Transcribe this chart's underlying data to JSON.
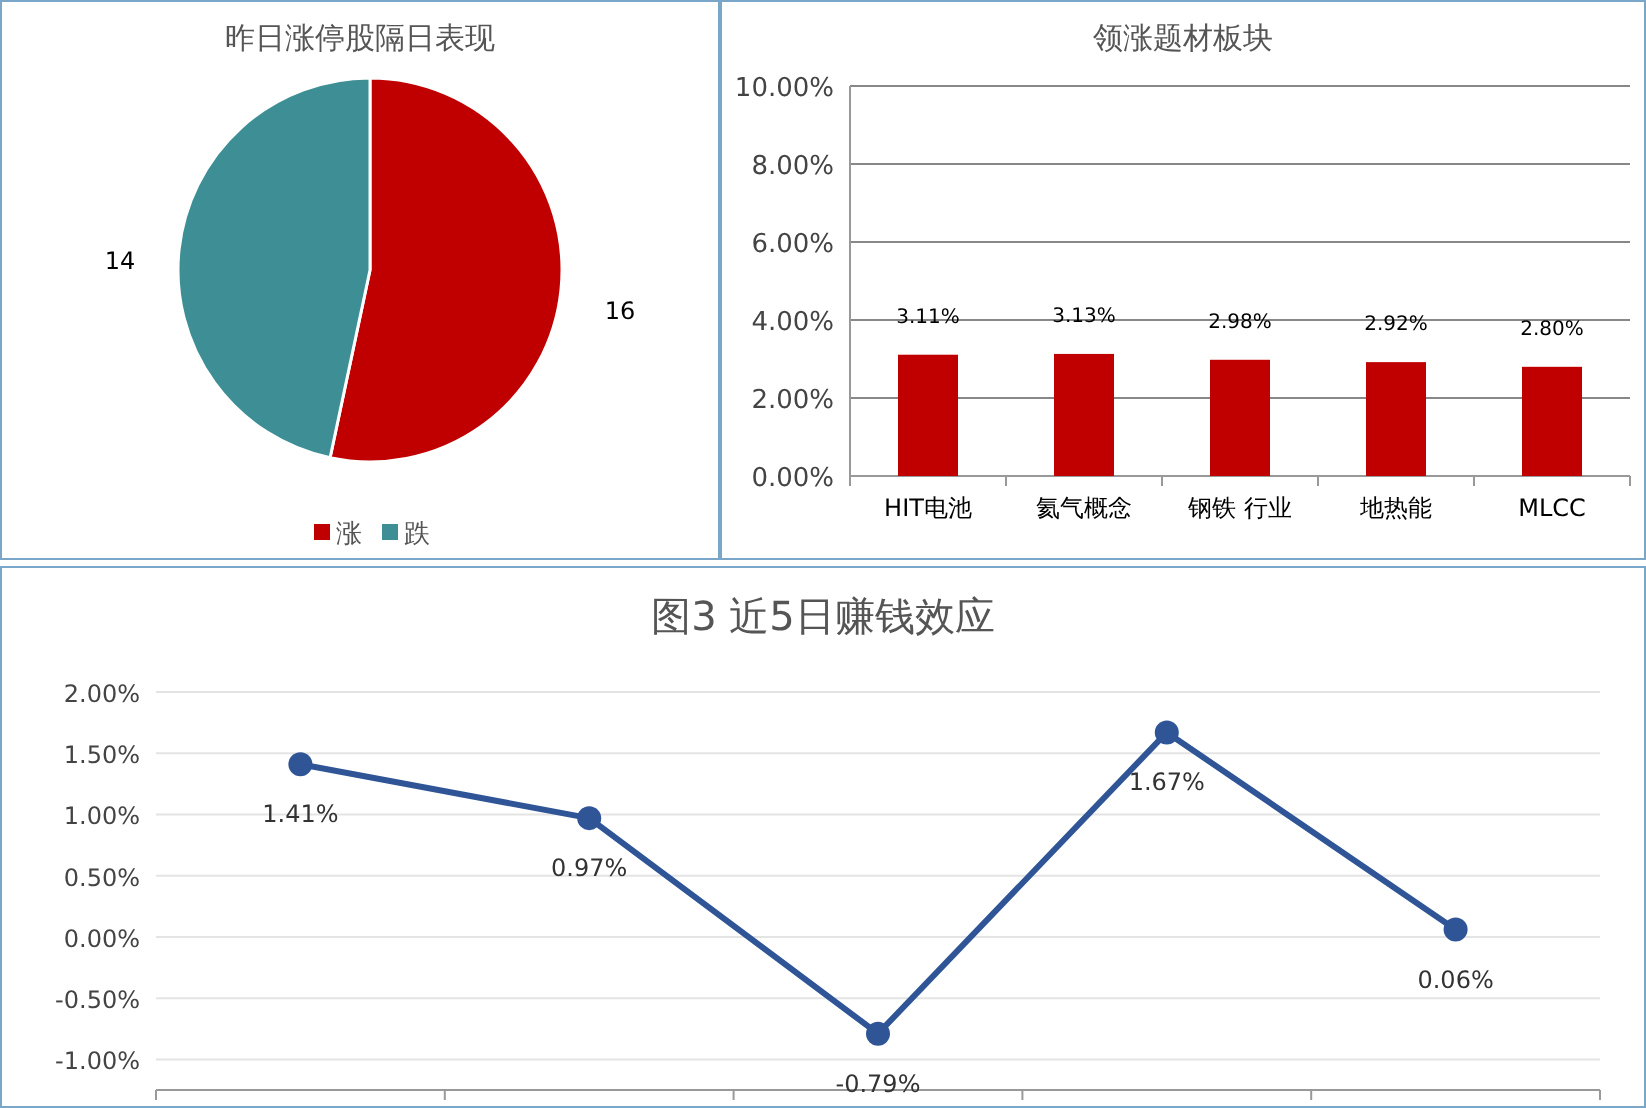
{
  "chart_data": [
    {
      "type": "pie",
      "title": "昨日涨停股隔日表现",
      "categories": [
        "涨",
        "跌"
      ],
      "values": [
        16,
        14
      ],
      "colors": [
        "#c00000",
        "#3e8f95"
      ],
      "data_labels": true,
      "legend": "bottom"
    },
    {
      "type": "bar",
      "title": "领涨题材板块",
      "categories": [
        "HIT电池",
        "氦气概念",
        "钢铁 行业",
        "地热能",
        "MLCC"
      ],
      "series": [
        {
          "color": "#c00000",
          "values": [
            3.11,
            3.13,
            2.98,
            2.92,
            2.8
          ],
          "value_labels": [
            "3.11%",
            "3.13%",
            "2.98%",
            "2.92%",
            "2.80%"
          ]
        }
      ],
      "ylim": [
        0,
        10
      ],
      "yticks": [
        {
          "value": 0,
          "label": "0.00%"
        },
        {
          "value": 2,
          "label": "2.00%"
        },
        {
          "value": 4,
          "label": "4.00%"
        },
        {
          "value": 6,
          "label": "6.00%"
        },
        {
          "value": 8,
          "label": "8.00%"
        },
        {
          "value": 10,
          "label": "10.00%"
        }
      ],
      "grid": "y"
    },
    {
      "type": "line",
      "title": "图3 近5日赚钱效应",
      "categories": [
        null,
        null,
        null,
        null,
        null
      ],
      "series": [
        {
          "color": "#2f5597",
          "values": [
            1.41,
            0.97,
            -0.79,
            1.67,
            0.06
          ],
          "value_labels": [
            "1.41%",
            "0.97%",
            "-0.79%",
            "1.67%",
            "0.06%"
          ]
        }
      ],
      "ylim": [
        -1.25,
        2.0
      ],
      "yticks": [
        {
          "value": -1,
          "label": "-1.00%"
        },
        {
          "value": -0.5,
          "label": "-0.50%"
        },
        {
          "value": 0,
          "label": "0.00%"
        },
        {
          "value": 0.5,
          "label": "0.50%"
        },
        {
          "value": 1,
          "label": "1.00%"
        },
        {
          "value": 1.5,
          "label": "1.50%"
        },
        {
          "value": 2,
          "label": "2.00%"
        }
      ],
      "grid": "y",
      "marker": "circle",
      "line_style": "solid"
    }
  ]
}
